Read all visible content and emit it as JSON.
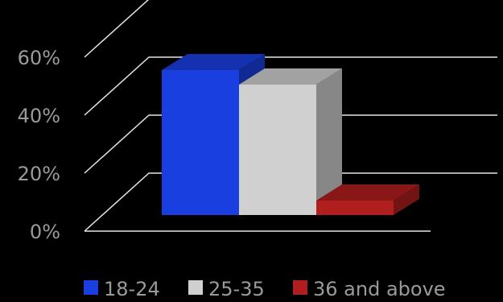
{
  "chart_data": {
    "type": "bar",
    "categories": [
      ""
    ],
    "series": [
      {
        "name": "18-24",
        "values": [
          50
        ],
        "color": "#1a3fe0"
      },
      {
        "name": "25-35",
        "values": [
          45
        ],
        "color": "#d0d0d0"
      },
      {
        "name": "36 and above",
        "values": [
          5
        ],
        "color": "#b01e1e"
      }
    ],
    "ylim": [
      0,
      60
    ],
    "y_ticks": [
      0,
      20,
      40,
      60
    ],
    "y_tick_labels": [
      "0%",
      "20%",
      "40%",
      "60%"
    ],
    "grid": true,
    "legend": "bottom",
    "style": "3d-column"
  }
}
